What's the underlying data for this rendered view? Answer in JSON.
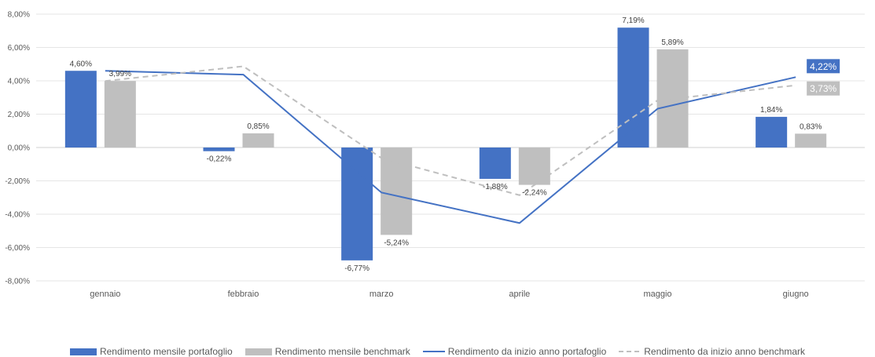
{
  "chart_data": {
    "type": "bar",
    "categories": [
      "gennaio",
      "febbraio",
      "marzo",
      "aprile",
      "maggio",
      "giugno"
    ],
    "ylim": [
      -8,
      8
    ],
    "yticks": [
      8,
      6,
      4,
      2,
      0,
      -2,
      -4,
      -6,
      -8
    ],
    "ytick_labels": [
      "8,00%",
      "6,00%",
      "4,00%",
      "2,00%",
      "0,00%",
      "-2,00%",
      "-4,00%",
      "-6,00%",
      "-8,00%"
    ],
    "grid": true,
    "legend_position": "bottom",
    "series": [
      {
        "name": "Rendimento mensile portafoglio",
        "kind": "bar",
        "color": "#4472c4",
        "values": [
          4.6,
          -0.22,
          -6.77,
          -1.88,
          7.19,
          1.84
        ],
        "labels": [
          "4,60%",
          "-0,22%",
          "-6,77%",
          "-1,88%",
          "7,19%",
          "1,84%"
        ]
      },
      {
        "name": "Rendimento mensile benchmark",
        "kind": "bar",
        "color": "#bfbfbf",
        "values": [
          3.99,
          0.85,
          -5.24,
          -2.24,
          5.89,
          0.83
        ],
        "labels": [
          "3,99%",
          "0,85%",
          "-5,24%",
          "-2,24%",
          "5,89%",
          "0,83%"
        ]
      },
      {
        "name": "Rendimento da inizio anno portafoglio",
        "kind": "line",
        "color": "#4472c4",
        "values": [
          4.6,
          4.37,
          -2.7,
          -4.53,
          2.33,
          4.22
        ],
        "end_label": "4,22%"
      },
      {
        "name": "Rendimento da inizio anno benchmark",
        "kind": "dashed-line",
        "color": "#bfbfbf",
        "values": [
          3.99,
          4.87,
          -0.63,
          -2.86,
          2.83,
          3.73
        ],
        "end_label": "3,73%"
      }
    ]
  }
}
